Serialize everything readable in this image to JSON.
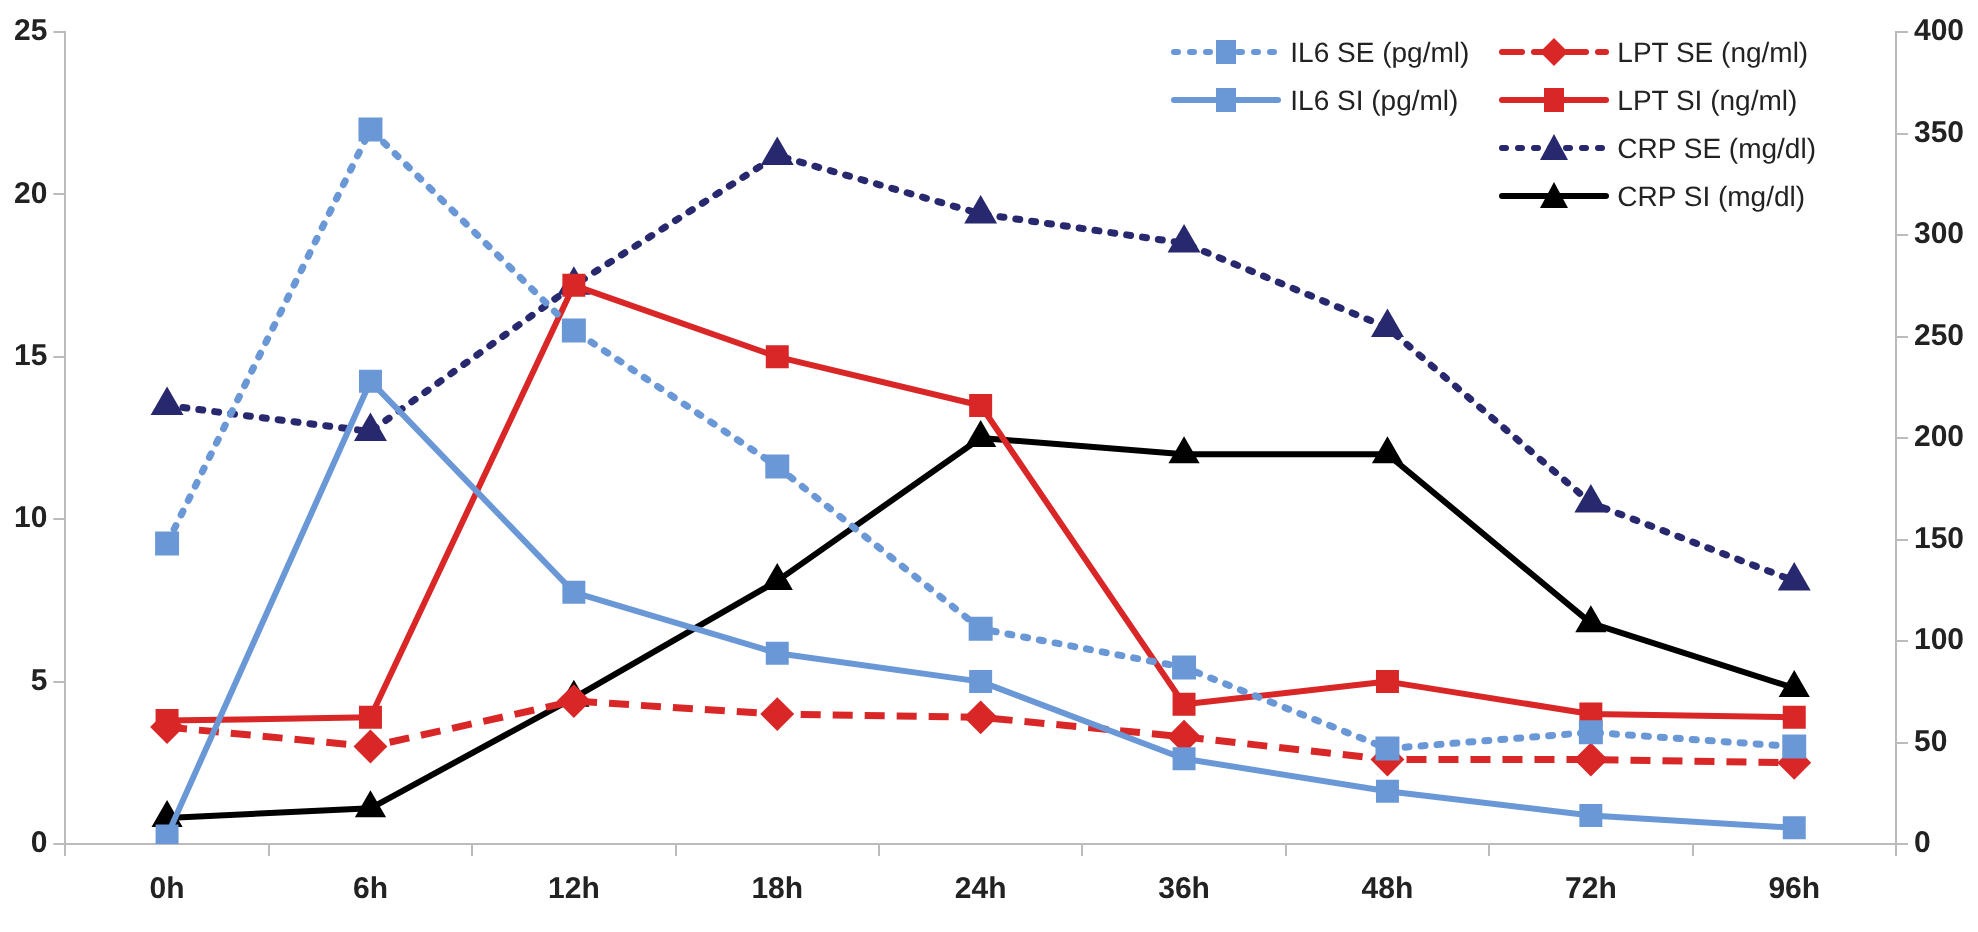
{
  "chart_data": {
    "type": "line",
    "categories": [
      "0h",
      "6h",
      "12h",
      "18h",
      "24h",
      "36h",
      "48h",
      "72h",
      "96h"
    ],
    "ylim": [
      0,
      25
    ],
    "yticks": [
      0,
      5,
      10,
      15,
      20,
      25
    ],
    "y2lim": [
      0,
      400
    ],
    "y2ticks": [
      0,
      50,
      100,
      150,
      200,
      250,
      300,
      350,
      400
    ],
    "grid": false,
    "legend": "top right",
    "series": [
      {
        "name": "IL6 SE (pg/ml)",
        "color": "#6a98d6",
        "axis": "y2",
        "marker": "square",
        "line_style": "dotted",
        "values": [
          148,
          352,
          253,
          186,
          106,
          87,
          47,
          55,
          48
        ]
      },
      {
        "name": "IL6 SI (pg/ml)",
        "color": "#6a98d6",
        "axis": "y2",
        "marker": "square",
        "line_style": "solid",
        "values": [
          4,
          228,
          124,
          94,
          80,
          42,
          26,
          14,
          8
        ]
      },
      {
        "name": "LPT SE (ng/ml)",
        "color": "#d92626",
        "marker": "diamond",
        "line_style": "dashed",
        "values": [
          3.6,
          3.0,
          4.4,
          4.0,
          3.9,
          3.3,
          2.6,
          2.6,
          2.5
        ]
      },
      {
        "name": "LPT SI (ng/ml)",
        "color": "#d92626",
        "marker": "square",
        "line_style": "solid",
        "values": [
          3.8,
          3.9,
          17.2,
          15.0,
          13.5,
          4.3,
          5.0,
          4.0,
          3.9
        ]
      },
      {
        "name": "CRP SE (mg/dl)",
        "color": "#28286e",
        "marker": "triangle",
        "line_style": "dotted",
        "values": [
          13.5,
          12.7,
          17.2,
          21.2,
          19.4,
          18.5,
          15.9,
          10.5,
          8.1
        ]
      },
      {
        "name": "CRP SI (mg/dl)",
        "color": "#000000",
        "marker": "triangle",
        "line_style": "solid",
        "values": [
          0.8,
          1.1,
          4.5,
          8.1,
          12.5,
          12.0,
          12.0,
          6.8,
          4.8
        ]
      }
    ]
  }
}
